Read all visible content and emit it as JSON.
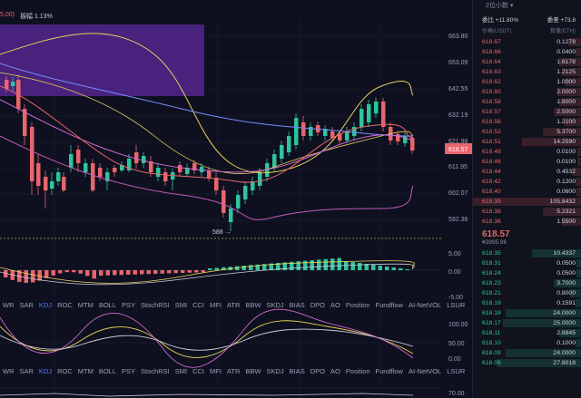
{
  "header": {
    "ma_label": "5.00)",
    "amplitude_label": "振幅",
    "amplitude_value": "1.13%"
  },
  "price_axis": [
    "663.80",
    "653.09",
    "642.55",
    "632.19",
    "621.98",
    "611.95",
    "602.07",
    "592.36"
  ],
  "current_price_tag": "618.57",
  "low_marker": "588 →",
  "macd_axis": [
    "5.00",
    "0.00",
    "-5.00"
  ],
  "kdj_axis": [
    "100.00",
    "50.00",
    "0.00"
  ],
  "bottom_axis": [
    "70.00"
  ],
  "indicator_tabs": [
    "WR",
    "SAR",
    "KDJ",
    "ROC",
    "MTM",
    "BOLL",
    "PSY",
    "StochRSI",
    "SMI",
    "CCI",
    "MFI",
    "ATR",
    "BBW",
    "SKDJ",
    "BIAS",
    "DPO",
    "AO",
    "Position",
    "Fundflow",
    "AI-NetVOL",
    "LSUR"
  ],
  "active_indicator_tab": "KDJ",
  "colors": {
    "up": "#2ec49a",
    "down": "#e8656b",
    "accent": "#4b7dff",
    "bg": "#0e1020"
  },
  "orderbook": {
    "header": "2位小数",
    "ratio_bid": "委比 +11.80%",
    "ratio_diff": "委差 +73.8",
    "col_price": "价格(USDT)",
    "col_qty": "数量(ETH)",
    "asks": [
      {
        "price": "618.67",
        "qty": "0.1278",
        "depth": 0.12
      },
      {
        "price": "618.66",
        "qty": "0.0400",
        "depth": 0.05
      },
      {
        "price": "618.64",
        "qty": "1.6178",
        "depth": 0.2
      },
      {
        "price": "618.63",
        "qty": "1.2125",
        "depth": 0.18
      },
      {
        "price": "618.62",
        "qty": "1.0000",
        "depth": 0.15
      },
      {
        "price": "618.60",
        "qty": "2.0000",
        "depth": 0.22
      },
      {
        "price": "618.58",
        "qty": "1.8000",
        "depth": 0.2
      },
      {
        "price": "618.57",
        "qty": "2.5000",
        "depth": 0.25
      },
      {
        "price": "618.56",
        "qty": "1.2100",
        "depth": 0.16
      },
      {
        "price": "618.52",
        "qty": "5.3700",
        "depth": 0.35
      },
      {
        "price": "618.51",
        "qty": "14.2590",
        "depth": 0.55
      },
      {
        "price": "618.48",
        "qty": "0.0100",
        "depth": 0.03
      },
      {
        "price": "618.46",
        "qty": "0.0100",
        "depth": 0.03
      },
      {
        "price": "618.44",
        "qty": "0.4532",
        "depth": 0.08
      },
      {
        "price": "618.42",
        "qty": "0.1200",
        "depth": 0.05
      },
      {
        "price": "618.40",
        "qty": "0.0600",
        "depth": 0.04
      },
      {
        "price": "618.39",
        "qty": "105.8432",
        "depth": 1.0
      },
      {
        "price": "618.38",
        "qty": "5.2321",
        "depth": 0.35
      },
      {
        "price": "618.36",
        "qty": "1.5500",
        "depth": 0.18
      }
    ],
    "last_price": "618.57",
    "last_fiat": "¥3995.96",
    "bids": [
      {
        "price": "618.35",
        "qty": "10.4337",
        "depth": 0.45
      },
      {
        "price": "618.31",
        "qty": "0.0500",
        "depth": 0.04
      },
      {
        "price": "618.24",
        "qty": "0.0500",
        "depth": 0.04
      },
      {
        "price": "618.23",
        "qty": "3.7000",
        "depth": 0.25
      },
      {
        "price": "618.21",
        "qty": "0.8000",
        "depth": 0.1
      },
      {
        "price": "618.19",
        "qty": "0.1591",
        "depth": 0.05
      },
      {
        "price": "618.18",
        "qty": "24.0000",
        "depth": 0.7
      },
      {
        "price": "618.17",
        "qty": "25.0000",
        "depth": 0.72
      },
      {
        "price": "618.11",
        "qty": "2.8845",
        "depth": 0.2
      },
      {
        "price": "618.10",
        "qty": "0.1000",
        "depth": 0.05
      },
      {
        "price": "618.09",
        "qty": "24.0000",
        "depth": 0.7
      },
      {
        "price": "618.08",
        "qty": "27.8018",
        "depth": 0.78
      }
    ]
  }
}
